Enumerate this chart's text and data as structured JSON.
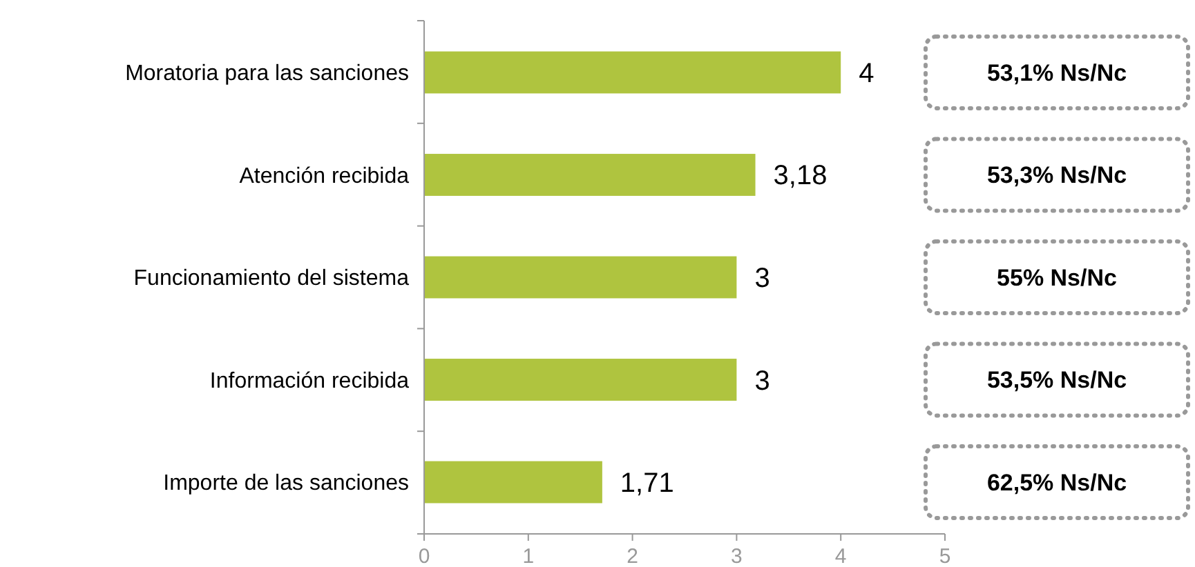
{
  "chart_data": {
    "type": "bar",
    "orientation": "horizontal",
    "categories": [
      "Moratoria para las sanciones",
      "Atención recibida",
      "Funcionamiento del sistema",
      "Información recibida ",
      "Importe de las sanciones"
    ],
    "values": [
      4,
      3.18,
      3,
      3,
      1.71
    ],
    "value_labels": [
      "4",
      "3,18",
      "3",
      "3",
      "1,71"
    ],
    "color": "#afc43f",
    "xlim": [
      0,
      5
    ],
    "xticks": [
      0,
      1,
      2,
      3,
      4,
      5
    ],
    "grid": false,
    "annotations": [
      "53,1% Ns/Nc",
      "53,3% Ns/Nc",
      "55% Ns/Nc",
      "53,5% Ns/Nc",
      "62,5% Ns/Nc"
    ]
  }
}
